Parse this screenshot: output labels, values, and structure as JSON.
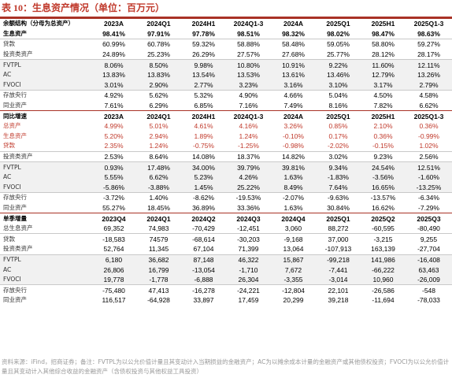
{
  "title": "表 10：生息资产情况（单位：百万元）",
  "columns_a": [
    "2023A",
    "2024Q1",
    "2024H1",
    "2024Q1-3",
    "2024A",
    "2025Q1",
    "2025H1",
    "2025Q1-3"
  ],
  "columns_b": [
    "2023A",
    "2024Q1",
    "2024H1",
    "2024Q1-3",
    "2024A",
    "2025Q1",
    "2025H1",
    "2025Q1-3"
  ],
  "columns_c": [
    "2023Q4",
    "2024Q1",
    "2024Q2",
    "2024Q3",
    "2024Q4",
    "2025Q1",
    "2025Q2",
    "2025Q3"
  ],
  "section_a": {
    "header": "余额结构（分母为总资产）",
    "rows": [
      {
        "label": "生息资产",
        "values": [
          "98.41%",
          "97.91%",
          "97.78%",
          "98.51%",
          "98.32%",
          "98.02%",
          "98.47%",
          "98.63%"
        ]
      },
      {
        "label": "贷款",
        "values": [
          "60.99%",
          "60.78%",
          "59.32%",
          "58.88%",
          "58.48%",
          "59.05%",
          "58.80%",
          "59.27%"
        ]
      },
      {
        "label": "投资类资产",
        "values": [
          "24.89%",
          "25.23%",
          "26.29%",
          "27.57%",
          "27.68%",
          "25.77%",
          "28.12%",
          "28.17%"
        ]
      },
      {
        "label": "FVTPL",
        "values": [
          "8.06%",
          "8.50%",
          "9.98%",
          "10.80%",
          "10.91%",
          "9.22%",
          "11.60%",
          "12.11%"
        ]
      },
      {
        "label": "AC",
        "values": [
          "13.83%",
          "13.83%",
          "13.54%",
          "13.53%",
          "13.61%",
          "13.46%",
          "12.79%",
          "13.26%"
        ]
      },
      {
        "label": "FVOCI",
        "values": [
          "3.01%",
          "2.90%",
          "2.77%",
          "3.23%",
          "3.16%",
          "3.10%",
          "3.17%",
          "2.79%"
        ]
      },
      {
        "label": "存放央行",
        "values": [
          "4.92%",
          "5.62%",
          "5.32%",
          "4.90%",
          "4.66%",
          "5.04%",
          "4.50%",
          "4.58%"
        ]
      },
      {
        "label": "同业资产",
        "values": [
          "7.61%",
          "6.29%",
          "6.85%",
          "7.16%",
          "7.49%",
          "8.16%",
          "7.82%",
          "6.62%"
        ]
      }
    ]
  },
  "section_b": {
    "header": "同比增速",
    "rows": [
      {
        "label": "总资产",
        "values": [
          "4.99%",
          "5.01%",
          "4.61%",
          "4.16%",
          "3.26%",
          "0.85%",
          "2.10%",
          "0.36%"
        ]
      },
      {
        "label": "生息资产",
        "values": [
          "5.20%",
          "2.94%",
          "1.89%",
          "1.24%",
          "-0.10%",
          "0.17%",
          "0.36%",
          "-0.99%"
        ]
      },
      {
        "label": "贷款",
        "values": [
          "2.35%",
          "1.24%",
          "-0.75%",
          "-1.25%",
          "-0.98%",
          "-2.02%",
          "-0.15%",
          "1.02%"
        ]
      },
      {
        "label": "投资类资产",
        "values": [
          "2.53%",
          "8.64%",
          "14.08%",
          "18.37%",
          "14.82%",
          "3.02%",
          "9.23%",
          "2.56%"
        ]
      },
      {
        "label": "FVTPL",
        "values": [
          "0.93%",
          "17.48%",
          "34.00%",
          "39.79%",
          "39.81%",
          "9.34%",
          "24.54%",
          "12.51%"
        ]
      },
      {
        "label": "AC",
        "values": [
          "5.55%",
          "6.62%",
          "5.23%",
          "4.26%",
          "1.63%",
          "-1.83%",
          "-3.56%",
          "-1.60%"
        ]
      },
      {
        "label": "FVOCI",
        "values": [
          "-5.86%",
          "-3.88%",
          "1.45%",
          "25.22%",
          "8.49%",
          "7.64%",
          "16.65%",
          "-13.25%"
        ]
      },
      {
        "label": "存放央行",
        "values": [
          "-3.72%",
          "1.40%",
          "-8.62%",
          "-19.53%",
          "-2.07%",
          "-9.63%",
          "-13.57%",
          "-6.34%"
        ]
      },
      {
        "label": "同业资产",
        "values": [
          "55.27%",
          "18.45%",
          "36.89%",
          "33.36%",
          "1.63%",
          "30.84%",
          "16.62%",
          "-7.29%"
        ]
      }
    ]
  },
  "section_c": {
    "header": "单季增量",
    "rows": [
      {
        "label": "总生息资产",
        "values": [
          "69,352",
          "74,983",
          "-70,429",
          "-12,451",
          "3,060",
          "88,272",
          "-60,595",
          "-80,490"
        ]
      },
      {
        "label": "贷款",
        "values": [
          "-18,583",
          "74579",
          "-68,614",
          "-30,203",
          "-9,168",
          "37,000",
          "-3,215",
          "9,255"
        ]
      },
      {
        "label": "投资类资产",
        "values": [
          "52,764",
          "11,345",
          "67,104",
          "71,399",
          "13,064",
          "-107,913",
          "163,139",
          "-27,704"
        ]
      },
      {
        "label": "FVTPL",
        "values": [
          "6,180",
          "36,682",
          "87,148",
          "46,322",
          "15,867",
          "-99,218",
          "141,986",
          "-16,408"
        ]
      },
      {
        "label": "AC",
        "values": [
          "26,806",
          "16,799",
          "-13,054",
          "-1,710",
          "7,672",
          "-7,441",
          "-66,222",
          "63,463"
        ]
      },
      {
        "label": "FVOCI",
        "values": [
          "19,778",
          "-1,778",
          "-6,888",
          "26,304",
          "-3,355",
          "-3,014",
          "10,960",
          "-26,009"
        ]
      },
      {
        "label": "存放央行",
        "values": [
          "-75,480",
          "47,413",
          "-16,278",
          "-24,221",
          "-12,804",
          "22,101",
          "-26,586",
          "-548"
        ]
      },
      {
        "label": "同业资产",
        "values": [
          "116,517",
          "-64,928",
          "33,897",
          "17,459",
          "20,299",
          "39,218",
          "-11,694",
          "-78,033"
        ]
      }
    ]
  },
  "footnote": "资料来源：iFind，招商证券；备注：FVTPL为以公允价值计量且其变动计入当期损益的金融资产；AC为以摊余成本计量的金融资产或其他债权投资；FVOCI为以公允价值计量且其变动计入其他综合收益的金融资产（含债权投资与其他权益工具投资）"
}
